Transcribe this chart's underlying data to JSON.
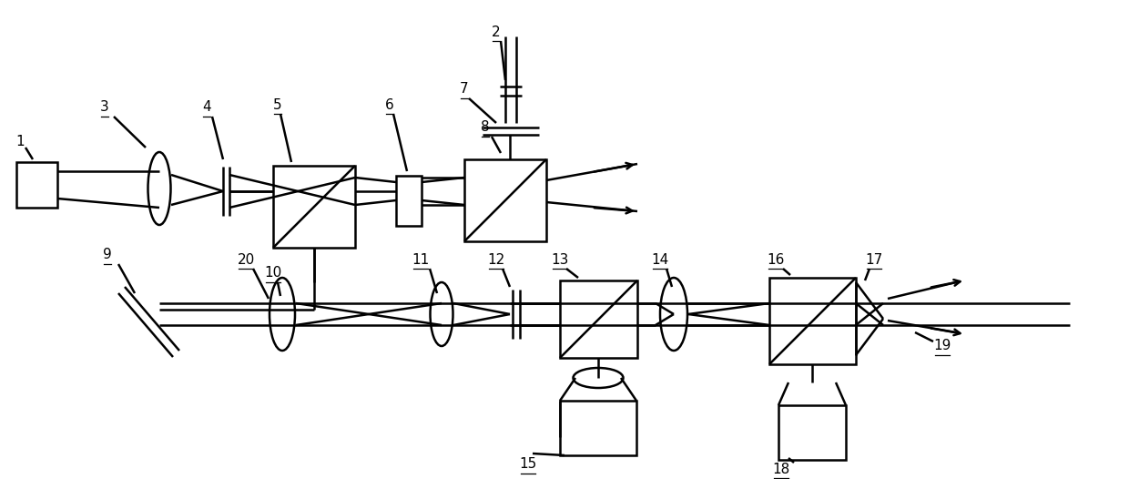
{
  "bg": "#ffffff",
  "lc": "#000000",
  "lw": 1.8,
  "fw": 12.4,
  "fh": 5.26,
  "dpi": 100,
  "label_fs": 11
}
